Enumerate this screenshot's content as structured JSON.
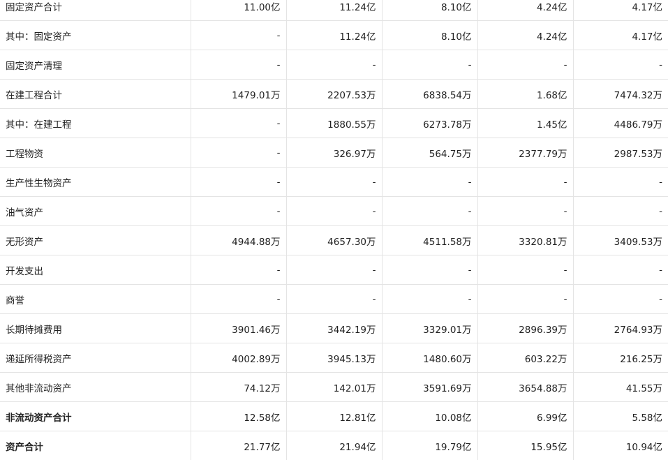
{
  "rows": [
    {
      "label": "固定资产合计",
      "values": [
        "11.00亿",
        "11.24亿",
        "8.10亿",
        "4.24亿",
        "4.17亿"
      ],
      "bold": false
    },
    {
      "label": "其中：固定资产",
      "values": [
        "-",
        "11.24亿",
        "8.10亿",
        "4.24亿",
        "4.17亿"
      ],
      "bold": false
    },
    {
      "label": "固定资产清理",
      "values": [
        "-",
        "-",
        "-",
        "-",
        "-"
      ],
      "bold": false
    },
    {
      "label": "在建工程合计",
      "values": [
        "1479.01万",
        "2207.53万",
        "6838.54万",
        "1.68亿",
        "7474.32万"
      ],
      "bold": false
    },
    {
      "label": "其中：在建工程",
      "values": [
        "-",
        "1880.55万",
        "6273.78万",
        "1.45亿",
        "4486.79万"
      ],
      "bold": false
    },
    {
      "label": "工程物资",
      "values": [
        "-",
        "326.97万",
        "564.75万",
        "2377.79万",
        "2987.53万"
      ],
      "bold": false
    },
    {
      "label": "生产性生物资产",
      "values": [
        "-",
        "-",
        "-",
        "-",
        "-"
      ],
      "bold": false
    },
    {
      "label": "油气资产",
      "values": [
        "-",
        "-",
        "-",
        "-",
        "-"
      ],
      "bold": false
    },
    {
      "label": "无形资产",
      "values": [
        "4944.88万",
        "4657.30万",
        "4511.58万",
        "3320.81万",
        "3409.53万"
      ],
      "bold": false
    },
    {
      "label": "开发支出",
      "values": [
        "-",
        "-",
        "-",
        "-",
        "-"
      ],
      "bold": false
    },
    {
      "label": "商誉",
      "values": [
        "-",
        "-",
        "-",
        "-",
        "-"
      ],
      "bold": false
    },
    {
      "label": "长期待摊费用",
      "values": [
        "3901.46万",
        "3442.19万",
        "3329.01万",
        "2896.39万",
        "2764.93万"
      ],
      "bold": false
    },
    {
      "label": "递延所得税资产",
      "values": [
        "4002.89万",
        "3945.13万",
        "1480.60万",
        "603.22万",
        "216.25万"
      ],
      "bold": false
    },
    {
      "label": "其他非流动资产",
      "values": [
        "74.12万",
        "142.01万",
        "3591.69万",
        "3654.88万",
        "41.55万"
      ],
      "bold": false
    },
    {
      "label": "非流动资产合计",
      "values": [
        "12.58亿",
        "12.81亿",
        "10.08亿",
        "6.99亿",
        "5.58亿"
      ],
      "bold": true
    },
    {
      "label": "资产合计",
      "values": [
        "21.77亿",
        "21.94亿",
        "19.79亿",
        "15.95亿",
        "10.94亿"
      ],
      "bold": true
    }
  ]
}
